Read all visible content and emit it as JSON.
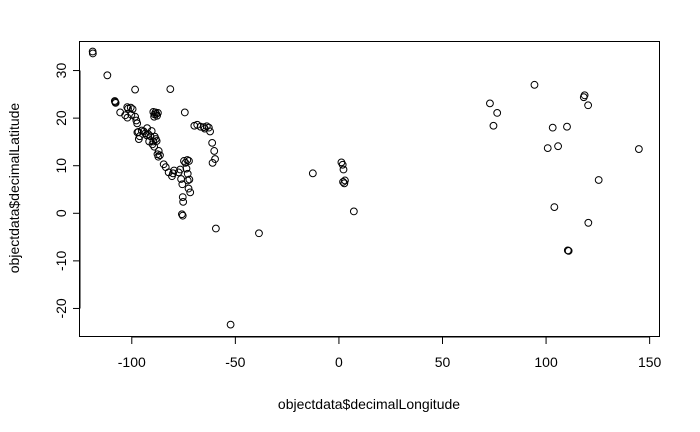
{
  "chart_data": {
    "type": "scatter",
    "xlabel": "objectdata$decimalLongitude",
    "ylabel": "objectdata$decimalLatitude",
    "xlim": [
      -125,
      155
    ],
    "ylim": [
      -26,
      36
    ],
    "xticks": [
      -100,
      -50,
      0,
      50,
      100,
      150
    ],
    "yticks": [
      -20,
      -10,
      0,
      10,
      20,
      30
    ],
    "xtick_labels": [
      "-100",
      "-50",
      "0",
      "50",
      "100",
      "150"
    ],
    "ytick_labels": [
      "-20",
      "-10",
      "0",
      "10",
      "20",
      "30"
    ],
    "grid": false,
    "marker": "open-circle",
    "points": [
      [
        -118.9,
        34.0
      ],
      [
        -118.8,
        33.6
      ],
      [
        -111.8,
        29.0
      ],
      [
        -98.4,
        26.0
      ],
      [
        -108.2,
        23.6
      ],
      [
        -107.8,
        23.2
      ],
      [
        -108.0,
        23.4
      ],
      [
        -102.2,
        22.3
      ],
      [
        -101.8,
        22.0
      ],
      [
        -100.5,
        22.2
      ],
      [
        -99.6,
        21.9
      ],
      [
        -105.6,
        21.2
      ],
      [
        -103.2,
        20.6
      ],
      [
        -102.1,
        20.1
      ],
      [
        -100.2,
        20.7
      ],
      [
        -98.4,
        20.3
      ],
      [
        -97.8,
        19.5
      ],
      [
        -97.4,
        18.9
      ],
      [
        -96.8,
        17.1
      ],
      [
        -97.3,
        17.0
      ],
      [
        -96.2,
        16.2
      ],
      [
        -96.6,
        15.6
      ],
      [
        -95.2,
        17.4
      ],
      [
        -94.2,
        17.2
      ],
      [
        -93.4,
        16.8
      ],
      [
        -92.8,
        16.4
      ],
      [
        -92.6,
        17.9
      ],
      [
        -92.0,
        16.6
      ],
      [
        -91.6,
        15.1
      ],
      [
        -91.0,
        16.2
      ],
      [
        -90.4,
        17.3
      ],
      [
        -90.0,
        14.5
      ],
      [
        -89.6,
        15.1
      ],
      [
        -89.2,
        14.0
      ],
      [
        -88.9,
        16.1
      ],
      [
        -88.4,
        15.6
      ],
      [
        -88.0,
        15.2
      ],
      [
        -89.6,
        21.3
      ],
      [
        -89.0,
        20.8
      ],
      [
        -88.6,
        21.2
      ],
      [
        -88.2,
        20.9
      ],
      [
        -87.8,
        20.5
      ],
      [
        -87.4,
        21.1
      ],
      [
        -89.2,
        20.3
      ],
      [
        -87.6,
        12.4
      ],
      [
        -87.2,
        11.9
      ],
      [
        -87.0,
        13.1
      ],
      [
        -86.4,
        12.2
      ],
      [
        -84.6,
        10.3
      ],
      [
        -83.6,
        9.7
      ],
      [
        -82.2,
        8.6
      ],
      [
        -81.4,
        26.1
      ],
      [
        -80.6,
        7.8
      ],
      [
        -80.1,
        8.4
      ],
      [
        -79.6,
        9.0
      ],
      [
        -77.4,
        8.6
      ],
      [
        -76.6,
        9.2
      ],
      [
        -76.2,
        7.2
      ],
      [
        -75.6,
        6.1
      ],
      [
        -75.4,
        3.4
      ],
      [
        -75.2,
        2.4
      ],
      [
        -75.8,
        -0.2
      ],
      [
        -75.4,
        -0.5
      ],
      [
        -74.4,
        21.2
      ],
      [
        -74.8,
        11.0
      ],
      [
        -74.1,
        10.6
      ],
      [
        -73.2,
        11.2
      ],
      [
        -72.4,
        11.0
      ],
      [
        -73.6,
        9.4
      ],
      [
        -73.0,
        8.3
      ],
      [
        -73.0,
        6.9
      ],
      [
        -72.6,
        5.2
      ],
      [
        -72.2,
        7.1
      ],
      [
        -71.8,
        4.4
      ],
      [
        -69.8,
        18.4
      ],
      [
        -68.4,
        18.6
      ],
      [
        -66.8,
        18.2
      ],
      [
        -65.2,
        18.1
      ],
      [
        -64.8,
        17.8
      ],
      [
        -63.8,
        18.3
      ],
      [
        -62.8,
        18.0
      ],
      [
        -62.2,
        17.2
      ],
      [
        -61.2,
        14.8
      ],
      [
        -61.0,
        10.6
      ],
      [
        -59.8,
        11.4
      ],
      [
        -60.2,
        13.1
      ],
      [
        -59.4,
        -3.2
      ],
      [
        -52.3,
        -23.4
      ],
      [
        -38.6,
        -4.2
      ],
      [
        -12.6,
        8.4
      ],
      [
        1.2,
        10.7
      ],
      [
        1.8,
        10.2
      ],
      [
        2.2,
        9.2
      ],
      [
        2.0,
        6.6
      ],
      [
        2.6,
        6.3
      ],
      [
        2.9,
        6.9
      ],
      [
        7.2,
        0.4
      ],
      [
        72.9,
        23.1
      ],
      [
        74.6,
        18.4
      ],
      [
        76.4,
        21.1
      ],
      [
        94.4,
        27.0
      ],
      [
        100.8,
        13.7
      ],
      [
        103.2,
        18.0
      ],
      [
        104.0,
        1.3
      ],
      [
        105.8,
        14.1
      ],
      [
        110.1,
        18.2
      ],
      [
        110.5,
        -7.8
      ],
      [
        110.9,
        -7.9
      ],
      [
        118.2,
        24.4
      ],
      [
        118.6,
        24.8
      ],
      [
        120.3,
        22.7
      ],
      [
        120.4,
        -2.0
      ],
      [
        125.4,
        7.0
      ],
      [
        144.8,
        13.5
      ]
    ]
  }
}
